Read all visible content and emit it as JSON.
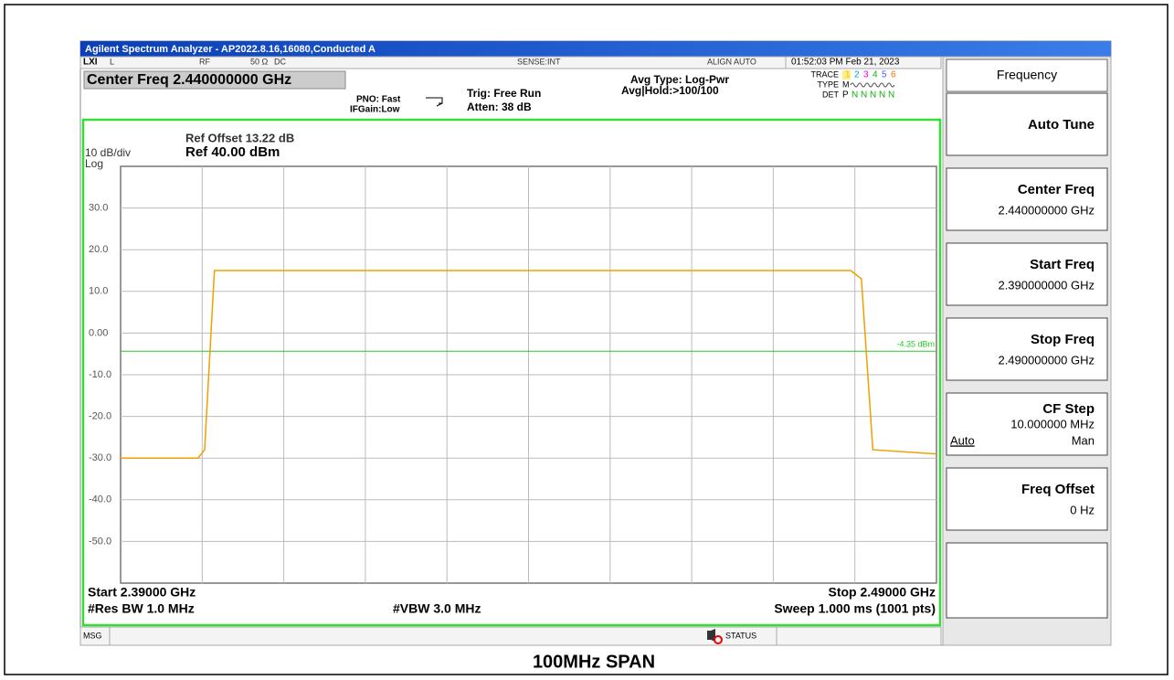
{
  "window": {
    "title": "Agilent Spectrum Analyzer - AP2022.8.16,16080,Conducted A"
  },
  "status": {
    "input": "L",
    "rf": "RF",
    "impedance": "50 Ω",
    "coupling": "DC",
    "sense": "SENSE:INT",
    "align": "ALIGN AUTO",
    "datetime": "01:52:03 PM Feb 21, 2023"
  },
  "settings": {
    "center": "Center Freq 2.440000000 GHz",
    "pno": "PNO: Fast",
    "ifgain": "IFGain:Low",
    "trig": "Trig: Free Run",
    "atten": "Atten: 38 dB",
    "avg_type": "Avg Type: Log-Pwr",
    "avg_hold": "Avg|Hold:>100/100",
    "trace_label": "TRACE",
    "trace_nums": [
      "1",
      "2",
      "3",
      "4",
      "5",
      "6"
    ],
    "type_label": "TYPE",
    "type_value": "M",
    "det_label": "DET",
    "det_values": [
      "P",
      "N",
      "N",
      "N",
      "N",
      "N"
    ]
  },
  "plot": {
    "ref_offset": "Ref Offset 13.22 dB",
    "ref_level": "Ref 40.00 dBm",
    "scale": "10 dB/div",
    "log": "Log",
    "ylim": [
      -60,
      40
    ],
    "yticks": [
      {
        "value": 30,
        "label": "30.0"
      },
      {
        "value": 20,
        "label": "20.0"
      },
      {
        "value": 10,
        "label": "10.0"
      },
      {
        "value": 0,
        "label": "0.00"
      },
      {
        "value": -10,
        "label": "-10.0"
      },
      {
        "value": -20,
        "label": "-20.0"
      },
      {
        "value": -30,
        "label": "-30.0"
      },
      {
        "value": -40,
        "label": "-40.0"
      },
      {
        "value": -50,
        "label": "-50.0"
      }
    ],
    "xlim": [
      2.39,
      2.49
    ],
    "xticks": [
      2.4,
      2.41,
      2.42,
      2.43,
      2.44,
      2.45,
      2.46,
      2.47,
      2.48
    ],
    "display_line": {
      "value": -4.35,
      "label": "-4.35 dBm",
      "color": "#22cc22"
    },
    "trace": {
      "color": "#f0a000",
      "x": [
        2.39,
        2.3995,
        2.4003,
        2.4015,
        2.4795,
        2.4808,
        2.4822,
        2.49
      ],
      "values": [
        -30,
        -30,
        -28,
        15,
        15,
        13,
        -28,
        -29
      ]
    },
    "start": "Start 2.39000 GHz",
    "stop": "Stop 2.49000 GHz",
    "rbw": "#Res BW 1.0 MHz",
    "vbw": "#VBW 3.0 MHz",
    "sweep": "Sweep  1.000 ms (1001 pts)"
  },
  "statusbar": {
    "msg": "MSG",
    "status": "STATUS"
  },
  "menu": {
    "title": "Frequency",
    "keys": [
      {
        "label": "Auto Tune"
      },
      {
        "label": "Center Freq",
        "value": "2.440000000 GHz"
      },
      {
        "label": "Start Freq",
        "value": "2.390000000 GHz"
      },
      {
        "label": "Stop Freq",
        "value": "2.490000000 GHz"
      },
      {
        "label": "CF Step",
        "value": "10.000000 MHz",
        "options": [
          "Auto",
          "Man"
        ]
      },
      {
        "label": "Freq Offset",
        "value": "0 Hz"
      }
    ]
  },
  "caption": "100MHz SPAN"
}
